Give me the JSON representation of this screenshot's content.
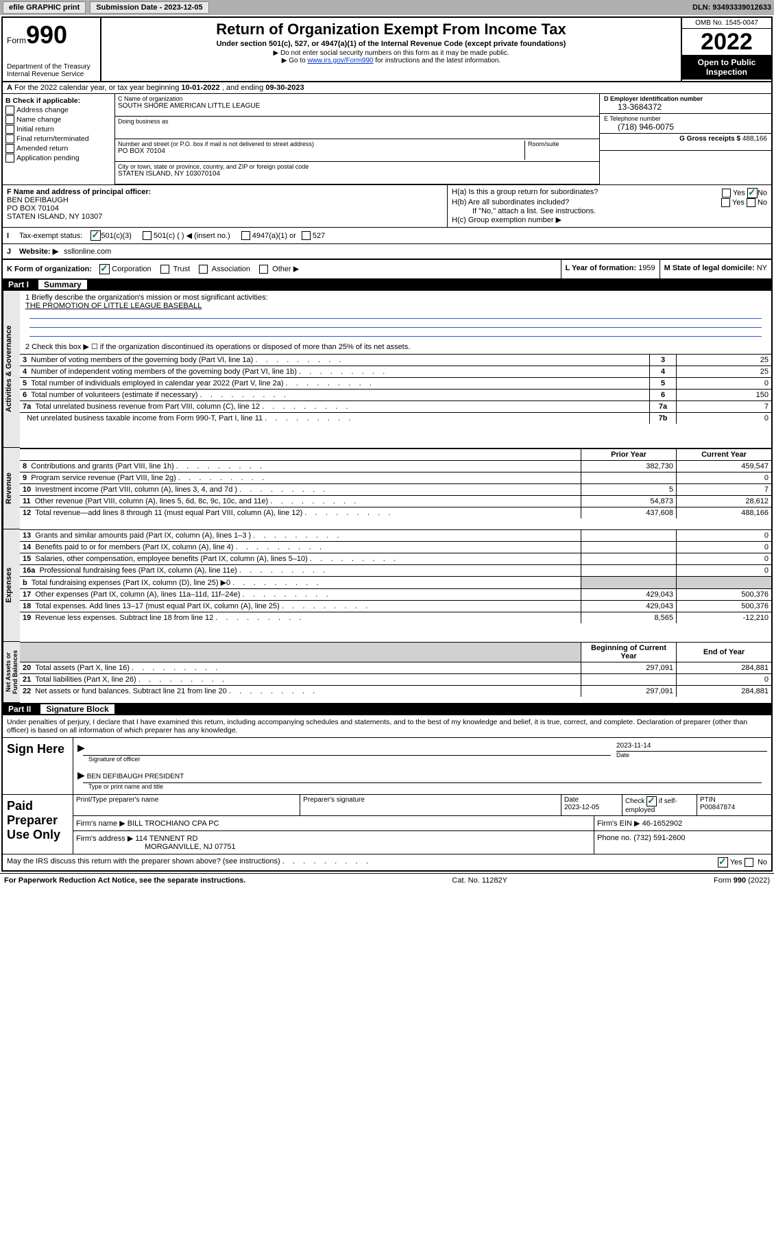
{
  "toolbar": {
    "efile": "efile GRAPHIC print",
    "submission_label": "Submission Date - 2023-12-05",
    "dln": "DLN: 93493339012633"
  },
  "header": {
    "form_word": "Form",
    "form_number": "990",
    "dept": "Department of the Treasury",
    "irs": "Internal Revenue Service",
    "title": "Return of Organization Exempt From Income Tax",
    "sub1": "Under section 501(c), 527, or 4947(a)(1) of the Internal Revenue Code (except private foundations)",
    "sub2": "▶ Do not enter social security numbers on this form as it may be made public.",
    "sub3_pre": "▶ Go to ",
    "sub3_link": "www.irs.gov/Form990",
    "sub3_post": " for instructions and the latest information.",
    "omb": "OMB No. 1545-0047",
    "year": "2022",
    "open": "Open to Public Inspection"
  },
  "section_a": {
    "text_pre": "For the 2022 calendar year, or tax year beginning ",
    "begin": "10-01-2022",
    "mid": " , and ending ",
    "end": "09-30-2023"
  },
  "box_b": {
    "label": "B Check if applicable:",
    "items": [
      "Address change",
      "Name change",
      "Initial return",
      "Final return/terminated",
      "Amended return",
      "Application pending"
    ]
  },
  "box_c": {
    "name_label": "C Name of organization",
    "name": "SOUTH SHORE AMERICAN LITTLE LEAGUE",
    "dba_label": "Doing business as",
    "addr_label": "Number and street (or P.O. box if mail is not delivered to street address)",
    "room_label": "Room/suite",
    "addr": "PO BOX 70104",
    "city_label": "City or town, state or province, country, and ZIP or foreign postal code",
    "city": "STATEN ISLAND, NY  103070104"
  },
  "box_d": {
    "label": "D Employer identification number",
    "val": "13-3684372"
  },
  "box_e": {
    "label": "E Telephone number",
    "val": "(718) 946-0075"
  },
  "box_g": {
    "label": "G Gross receipts $",
    "val": "488,166"
  },
  "box_f": {
    "label": "F  Name and address of principal officer:",
    "name": "BEN DEFIBAUGH",
    "addr1": "PO BOX 70104",
    "addr2": "STATEN ISLAND, NY  10307"
  },
  "box_h": {
    "ha": "H(a)  Is this a group return for subordinates?",
    "hb": "H(b)  Are all subordinates included?",
    "hb_note": "If \"No,\" attach a list. See instructions.",
    "hc": "H(c)  Group exemption number ▶",
    "yes": "Yes",
    "no": "No"
  },
  "row_i": {
    "label": "Tax-exempt status:",
    "opt1": "501(c)(3)",
    "opt2": "501(c) (   ) ◀ (insert no.)",
    "opt3": "4947(a)(1) or",
    "opt4": "527"
  },
  "row_j": {
    "label": "Website: ▶",
    "val": "ssllonline.com"
  },
  "row_k": {
    "label": "K Form of organization:",
    "opts": [
      "Corporation",
      "Trust",
      "Association",
      "Other ▶"
    ],
    "year_label": "L Year of formation:",
    "year": "1959",
    "state_label": "M State of legal domicile:",
    "state": "NY"
  },
  "part1": {
    "tab": "Part I",
    "title": "Summary"
  },
  "sections": {
    "gov": "Activities & Governance",
    "rev": "Revenue",
    "exp": "Expenses",
    "net": "Net Assets or Fund Balances"
  },
  "summary": {
    "l1_label": "1   Briefly describe the organization's mission or most significant activities:",
    "l1_val": "THE PROMOTION OF LITTLE LEAGUE BASEBALL",
    "l2": "2   Check this box ▶ ☐  if the organization discontinued its operations or disposed of more than 25% of its net assets.",
    "rows_gov": [
      {
        "n": "3",
        "t": "Number of voting members of the governing body (Part VI, line 1a)",
        "b": "3",
        "v": "25"
      },
      {
        "n": "4",
        "t": "Number of independent voting members of the governing body (Part VI, line 1b)",
        "b": "4",
        "v": "25"
      },
      {
        "n": "5",
        "t": "Total number of individuals employed in calendar year 2022 (Part V, line 2a)",
        "b": "5",
        "v": "0"
      },
      {
        "n": "6",
        "t": "Total number of volunteers (estimate if necessary)",
        "b": "6",
        "v": "150"
      },
      {
        "n": "7a",
        "t": "Total unrelated business revenue from Part VIII, column (C), line 12",
        "b": "7a",
        "v": "7"
      },
      {
        "n": "",
        "t": "Net unrelated business taxable income from Form 990-T, Part I, line 11",
        "b": "7b",
        "v": "0"
      }
    ],
    "hdr_prior": "Prior Year",
    "hdr_curr": "Current Year",
    "rows_rev": [
      {
        "n": "8",
        "t": "Contributions and grants (Part VIII, line 1h)",
        "p": "382,730",
        "c": "459,547"
      },
      {
        "n": "9",
        "t": "Program service revenue (Part VIII, line 2g)",
        "p": "",
        "c": "0"
      },
      {
        "n": "10",
        "t": "Investment income (Part VIII, column (A), lines 3, 4, and 7d )",
        "p": "5",
        "c": "7"
      },
      {
        "n": "11",
        "t": "Other revenue (Part VIII, column (A), lines 5, 6d, 8c, 9c, 10c, and 11e)",
        "p": "54,873",
        "c": "28,612"
      },
      {
        "n": "12",
        "t": "Total revenue—add lines 8 through 11 (must equal Part VIII, column (A), line 12)",
        "p": "437,608",
        "c": "488,166"
      }
    ],
    "rows_exp": [
      {
        "n": "13",
        "t": "Grants and similar amounts paid (Part IX, column (A), lines 1–3 )",
        "p": "",
        "c": "0"
      },
      {
        "n": "14",
        "t": "Benefits paid to or for members (Part IX, column (A), line 4)",
        "p": "",
        "c": "0"
      },
      {
        "n": "15",
        "t": "Salaries, other compensation, employee benefits (Part IX, column (A), lines 5–10)",
        "p": "",
        "c": "0"
      },
      {
        "n": "16a",
        "t": "Professional fundraising fees (Part IX, column (A), line 11e)",
        "p": "",
        "c": "0"
      },
      {
        "n": "b",
        "t": "Total fundraising expenses (Part IX, column (D), line 25) ▶0",
        "p": "grey",
        "c": "grey"
      },
      {
        "n": "17",
        "t": "Other expenses (Part IX, column (A), lines 11a–11d, 11f–24e)",
        "p": "429,043",
        "c": "500,376"
      },
      {
        "n": "18",
        "t": "Total expenses. Add lines 13–17 (must equal Part IX, column (A), line 25)",
        "p": "429,043",
        "c": "500,376"
      },
      {
        "n": "19",
        "t": "Revenue less expenses. Subtract line 18 from line 12",
        "p": "8,565",
        "c": "-12,210"
      }
    ],
    "hdr_beg": "Beginning of Current Year",
    "hdr_end": "End of Year",
    "rows_net": [
      {
        "n": "20",
        "t": "Total assets (Part X, line 16)",
        "p": "297,091",
        "c": "284,881"
      },
      {
        "n": "21",
        "t": "Total liabilities (Part X, line 26)",
        "p": "",
        "c": "0"
      },
      {
        "n": "22",
        "t": "Net assets or fund balances. Subtract line 21 from line 20",
        "p": "297,091",
        "c": "284,881"
      }
    ]
  },
  "part2": {
    "tab": "Part II",
    "title": "Signature Block",
    "penalty": "Under penalties of perjury, I declare that I have examined this return, including accompanying schedules and statements, and to the best of my knowledge and belief, it is true, correct, and complete. Declaration of preparer (other than officer) is based on all information of which preparer has any knowledge."
  },
  "sign": {
    "here": "Sign Here",
    "sig_label": "Signature of officer",
    "date": "2023-11-14",
    "date_label": "Date",
    "name": "BEN DEFIBAUGH  PRESIDENT",
    "name_label": "Type or print name and title"
  },
  "paid": {
    "label": "Paid Preparer Use Only",
    "h1": "Print/Type preparer's name",
    "h2": "Preparer's signature",
    "h3": "Date",
    "date": "2023-12-05",
    "h4_pre": "Check",
    "h4_post": "if self-employed",
    "h5": "PTIN",
    "ptin": "P00847874",
    "firm_name_label": "Firm's name    ▶",
    "firm_name": "BILL TROCHIANO CPA PC",
    "firm_ein_label": "Firm's EIN ▶",
    "firm_ein": "46-1652902",
    "firm_addr_label": "Firm's address ▶",
    "firm_addr1": "114 TENNENT RD",
    "firm_addr2": "MORGANVILLE, NJ  07751",
    "phone_label": "Phone no.",
    "phone": "(732) 591-2600"
  },
  "discuss": {
    "q": "May the IRS discuss this return with the preparer shown above? (see instructions)",
    "yes": "Yes",
    "no": "No"
  },
  "footer": {
    "pra": "For Paperwork Reduction Act Notice, see the separate instructions.",
    "cat": "Cat. No. 11282Y",
    "form": "Form 990 (2022)"
  }
}
